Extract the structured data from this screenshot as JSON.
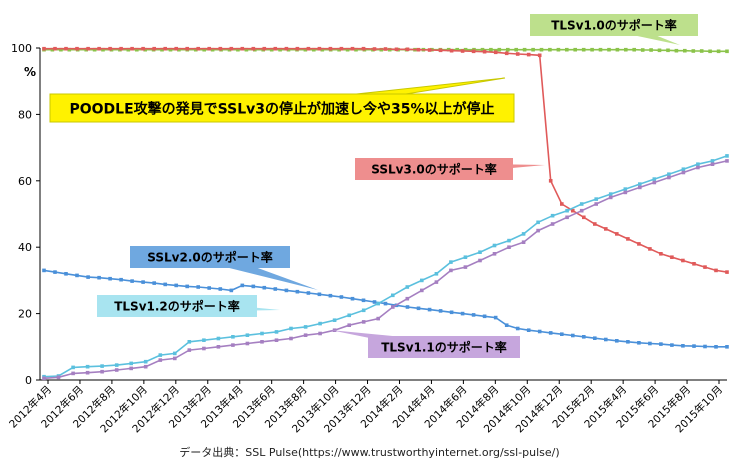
{
  "chart_data": {
    "type": "line",
    "ylabel": "%",
    "ylim": [
      0,
      100
    ],
    "yticks": [
      0,
      20,
      40,
      60,
      80,
      100
    ],
    "grid": false,
    "source_text": "データ出典：SSL Pulse(https://www.trustworthyinternet.org/ssl-pulse/)",
    "xtick_labels": [
      "2012年4月",
      "2012年6月",
      "2012年8月",
      "2012年10月",
      "2012年12月",
      "2013年2月",
      "2013年4月",
      "2013年6月",
      "2013年8月",
      "2013年10月",
      "2013年12月",
      "2014年2月",
      "2014年4月",
      "2014年6月",
      "2014年8月",
      "2014年10月",
      "2014年12月",
      "2015年2月",
      "2015年4月",
      "2015年6月",
      "2015年8月",
      "2015年10月"
    ],
    "series": [
      {
        "name": "TLSv1.0のサポート率",
        "color": "#8bc34a",
        "values": [
          99.5,
          99.5,
          99.5,
          99.5,
          99.5,
          99.5,
          99.5,
          99.5,
          99.5,
          99.5,
          99.5,
          99.5,
          99.5,
          99.5,
          99.5,
          99.5,
          99.5,
          99.5,
          99.5,
          99.5,
          99.5,
          99.5,
          99.5,
          99.5,
          99.5,
          99.5,
          99.5,
          99.5,
          99.5,
          99.5,
          99.5,
          99.5,
          99.5,
          99.5,
          99.5,
          99.5,
          99.5,
          99.5,
          99.5,
          99.5,
          99.5,
          99.5,
          99.5,
          99.5,
          99.5,
          99.5,
          99.5,
          99.5,
          99.5,
          99.5,
          99.5,
          99.5,
          99.5,
          99.5,
          99.5,
          99.5,
          99.5,
          99.5,
          99.5,
          99.5,
          99.5,
          99.5,
          99.5,
          99.5,
          99.5,
          99.5,
          99.5,
          99.5,
          99.5,
          99.5,
          99.5,
          99.4,
          99.4,
          99.3,
          99.3,
          99.2,
          99.2,
          99.1,
          99.1,
          99.0,
          99.0,
          99.0
        ]
      },
      {
        "name": "SSLv3.0のサポート率",
        "color": "#e05a5a",
        "values": [
          99.8,
          99.8,
          99.8,
          99.8,
          99.8,
          99.8,
          99.8,
          99.8,
          99.8,
          99.8,
          99.8,
          99.8,
          99.8,
          99.8,
          99.8,
          99.8,
          99.8,
          99.8,
          99.8,
          99.8,
          99.8,
          99.8,
          99.8,
          99.8,
          99.8,
          99.8,
          99.8,
          99.8,
          99.8,
          99.8,
          99.7,
          99.7,
          99.6,
          99.6,
          99.5,
          99.4,
          99.3,
          99.2,
          99.1,
          99.0,
          98.9,
          98.7,
          98.4,
          98.2,
          98.0,
          97.8,
          60.0,
          53.0,
          51.0,
          49.0,
          47.0,
          45.5,
          44.0,
          42.5,
          41.0,
          39.5,
          38.0,
          37.0,
          36.0,
          35.0,
          34.0,
          33.0,
          32.5
        ]
      },
      {
        "name": "SSLv2.0のサポート率",
        "color": "#4a90d9",
        "values": [
          33.0,
          32.5,
          32.0,
          31.5,
          31.0,
          30.8,
          30.5,
          30.2,
          29.8,
          29.5,
          29.2,
          28.8,
          28.5,
          28.2,
          28.0,
          27.7,
          27.4,
          27.0,
          28.5,
          28.2,
          27.8,
          27.4,
          27.0,
          26.6,
          26.2,
          25.8,
          25.4,
          25.0,
          24.5,
          24.0,
          23.5,
          23.0,
          22.5,
          22.0,
          21.6,
          21.2,
          20.8,
          20.4,
          20.0,
          19.6,
          19.2,
          18.8,
          16.5,
          15.5,
          15.0,
          14.6,
          14.2,
          13.8,
          13.4,
          13.0,
          12.6,
          12.2,
          11.8,
          11.5,
          11.2,
          11.0,
          10.8,
          10.5,
          10.3,
          10.2,
          10.1,
          10.0,
          10.0
        ]
      },
      {
        "name": "TLSv1.2のサポート率",
        "color": "#5bc0de",
        "values": [
          1.0,
          1.2,
          3.8,
          4.0,
          4.2,
          4.5,
          5.0,
          5.5,
          7.5,
          8.0,
          11.5,
          12.0,
          12.5,
          13.0,
          13.5,
          14.0,
          14.5,
          15.5,
          16.0,
          17.0,
          18.0,
          19.5,
          21.0,
          23.0,
          25.5,
          28.0,
          30.0,
          32.0,
          35.5,
          37.0,
          38.5,
          40.5,
          42.0,
          44.0,
          47.5,
          49.5,
          51.0,
          53.0,
          54.5,
          56.0,
          57.5,
          59.0,
          60.5,
          62.0,
          63.5,
          65.0,
          66.0,
          67.5
        ]
      },
      {
        "name": "TLSv1.1のサポート率",
        "color": "#a57fc1",
        "values": [
          0.5,
          0.8,
          2.0,
          2.2,
          2.5,
          3.0,
          3.5,
          4.0,
          6.0,
          6.5,
          9.0,
          9.5,
          10.0,
          10.5,
          11.0,
          11.5,
          12.0,
          12.5,
          13.5,
          14.0,
          15.0,
          16.5,
          17.5,
          18.5,
          22.0,
          24.5,
          27.0,
          29.5,
          33.0,
          34.0,
          36.0,
          38.0,
          40.0,
          41.5,
          45.0,
          47.0,
          49.0,
          51.0,
          53.0,
          55.0,
          56.5,
          58.0,
          59.5,
          61.0,
          62.5,
          64.0,
          65.0,
          66.0
        ]
      }
    ],
    "annotations": [
      {
        "text": "TLSv1.0のサポート率",
        "series": 0,
        "bg": "#bde08c"
      },
      {
        "text": "POODLE攻撃の発見でSSLv3の停止が加速し今や35%以上が停止",
        "series": 1,
        "bg": "#fff200",
        "border": "#c8c800"
      },
      {
        "text": "SSLv3.0のサポート率",
        "series": 1,
        "bg": "#ee8e8e"
      },
      {
        "text": "SSLv2.0のサポート率",
        "series": 2,
        "bg": "#6fa8e0"
      },
      {
        "text": "TLSv1.2のサポート率",
        "series": 3,
        "bg": "#a8e4f0"
      },
      {
        "text": "TLSv1.1のサポート率",
        "series": 4,
        "bg": "#c6a6dd"
      }
    ]
  }
}
